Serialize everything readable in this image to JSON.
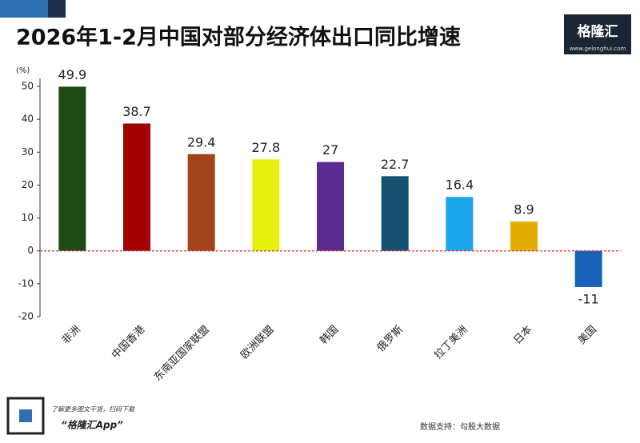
{
  "chart_data": {
    "type": "bar",
    "title": "2026年1-2月中国对部分经济体出口同比增速",
    "y_unit": "(%)",
    "categories": [
      "非洲",
      "中国香港",
      "东南亚国家联盟",
      "欧洲联盟",
      "韩国",
      "俄罗斯",
      "拉丁美洲",
      "日本",
      "美国"
    ],
    "values": [
      49.9,
      38.7,
      29.4,
      27.8,
      27,
      22.7,
      16.4,
      8.9,
      -11
    ],
    "colors": [
      "#1f4a13",
      "#a30202",
      "#a1431b",
      "#e6f00c",
      "#5b2a8f",
      "#15506f",
      "#1ba5ea",
      "#e2ad04",
      "#1762b6"
    ],
    "ylim": [
      -20,
      50
    ],
    "yticks": [
      -20,
      -10,
      0,
      10,
      20,
      30,
      40,
      50
    ],
    "grid": false,
    "zero_line_color": "#d9322e"
  },
  "logo": {
    "name": "格隆汇",
    "url": "www.gelonghui.com"
  },
  "footer": {
    "qr_caption": "了解更多图文干货，扫码下载",
    "app": "“格隆汇App”",
    "source": "数据支持：勾股大数据"
  }
}
